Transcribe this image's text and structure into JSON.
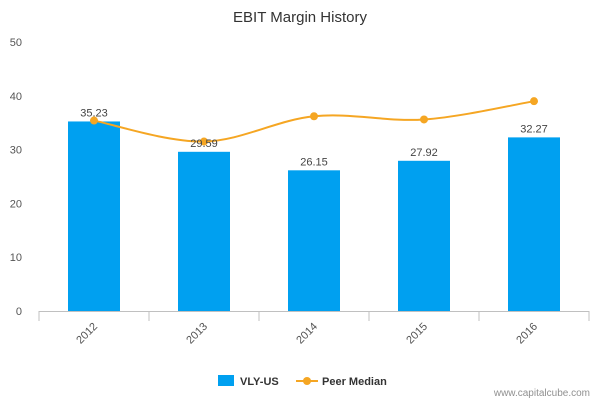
{
  "chart_data": {
    "type": "bar",
    "title": "EBIT Margin History",
    "categories": [
      "2012",
      "2013",
      "2014",
      "2015",
      "2016"
    ],
    "series": [
      {
        "name": "VLY-US",
        "kind": "bar",
        "color": "#00A0F0",
        "values": [
          35.23,
          29.59,
          26.15,
          27.92,
          32.27
        ],
        "labels": [
          "35.23",
          "29.59",
          "26.15",
          "27.92",
          "32.27"
        ]
      },
      {
        "name": "Peer Median",
        "kind": "line",
        "color": "#F5A623",
        "values": [
          35.4,
          31.5,
          36.2,
          35.6,
          39.0
        ]
      }
    ],
    "y_ticks": [
      "0",
      "10",
      "20",
      "30",
      "40",
      "50"
    ],
    "ylim": [
      0,
      50
    ],
    "grid": false,
    "legend_position": "bottom-center"
  },
  "credit": "www.capitalcube.com"
}
